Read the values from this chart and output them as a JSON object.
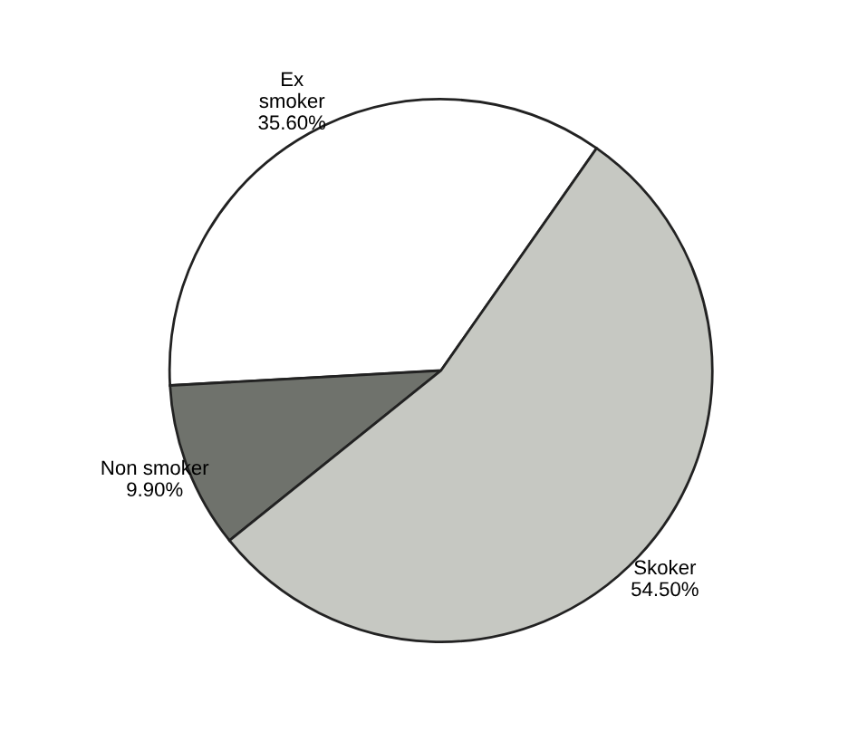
{
  "chart_data": {
    "type": "pie",
    "categories": [
      "Ex\nsmoker",
      "Non smoker",
      "Skoker"
    ],
    "values": [
      35.6,
      9.9,
      54.5
    ],
    "value_labels": [
      "35.60%",
      "9.90%",
      "54.50%"
    ],
    "colors": [
      "#ffffff",
      "#6f726c",
      "#c6c8c2"
    ],
    "legend": false
  }
}
